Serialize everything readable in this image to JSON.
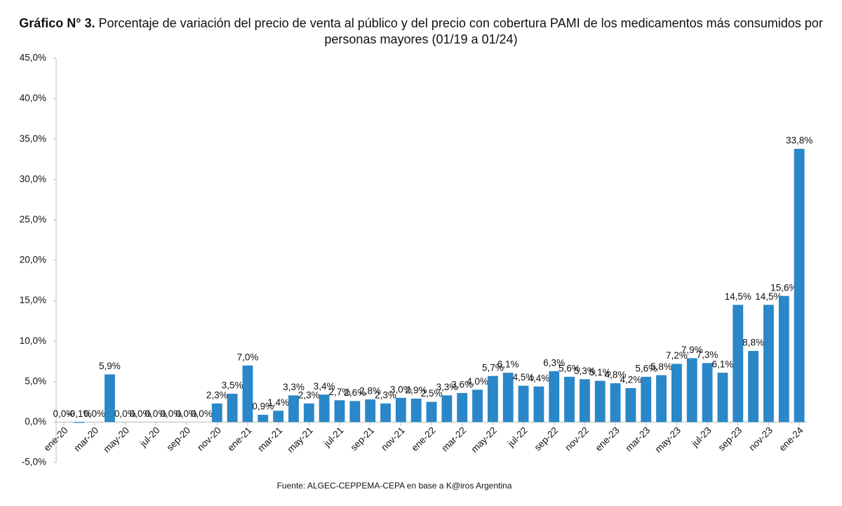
{
  "chart_data": {
    "type": "bar",
    "title_label": "Gráfico N° 3.",
    "title": "Porcentaje de variación del precio de venta al público y del precio con cobertura PAMI de los medicamentos más consumidos por personas mayores (01/19 a 01/24)",
    "source": "Fuente: ALGEC-CEPPEMA-CEPA en base a K@iros Argentina",
    "color": "#2a87c8",
    "categories": [
      "ene-20",
      null,
      "mar-20",
      null,
      "may-20",
      null,
      "jul-20",
      null,
      "sep-20",
      null,
      "nov-20",
      null,
      "ene-21",
      null,
      "mar-21",
      null,
      "may-21",
      null,
      "jul-21",
      null,
      "sep-21",
      null,
      "nov-21",
      null,
      "ene-22",
      null,
      "mar-22",
      null,
      "may-22",
      null,
      "jul-22",
      null,
      "sep-22",
      null,
      "nov-22",
      null,
      "ene-23",
      null,
      "mar-23",
      null,
      "may-23",
      null,
      "jul-23",
      null,
      "sep-23",
      null,
      "nov-23",
      null,
      "ene-24"
    ],
    "values": [
      0,
      -0.1,
      0,
      5.9,
      0,
      0,
      0,
      0,
      0,
      0,
      2.3,
      3.5,
      7.0,
      0.9,
      1.4,
      3.3,
      2.3,
      3.4,
      2.7,
      2.6,
      2.8,
      2.3,
      3.0,
      2.9,
      2.5,
      3.3,
      3.6,
      4.0,
      5.7,
      6.1,
      4.5,
      4.4,
      6.3,
      5.6,
      5.3,
      5.1,
      4.8,
      4.2,
      5.6,
      5.8,
      7.2,
      7.9,
      7.3,
      6.1,
      14.5,
      8.8,
      14.5,
      15.6,
      33.8
    ],
    "value_labels": [
      "0,0%",
      "-0,1%",
      "0,0%",
      "5,9%",
      "0,0%",
      "0,0%",
      "0,0%",
      "0,0%",
      "0,0%",
      "0,0%",
      "2,3%",
      "3,5%",
      "7,0%",
      "0,9%",
      "1,4%",
      "3,3%",
      "2,3%",
      "3,4%",
      "2,7%",
      "2,6%",
      "2,8%",
      "2,3%",
      "3,0%",
      "2,9%",
      "2,5%",
      "3,3%",
      "3,6%",
      "4,0%",
      "5,7%",
      "6,1%",
      "4,5%",
      "4,4%",
      "6,3%",
      "5,6%",
      "5,3%",
      "5,1%",
      "4,8%",
      "4,2%",
      "5,6%",
      "5,8%",
      "7,2%",
      "7,9%",
      "7,3%",
      "6,1%",
      "14,5%",
      "8,8%",
      "14,5%",
      "15,6%",
      "33,8%"
    ],
    "ylim": [
      -5,
      45
    ],
    "yticks": [
      {
        "value": -5,
        "label": "-5,0%"
      },
      {
        "value": 0,
        "label": "0,0%"
      },
      {
        "value": 5,
        "label": "5,0%"
      },
      {
        "value": 10,
        "label": "10,0%"
      },
      {
        "value": 15,
        "label": "15,0%"
      },
      {
        "value": 20,
        "label": "20,0%"
      },
      {
        "value": 25,
        "label": "25,0%"
      },
      {
        "value": 30,
        "label": "30,0%"
      },
      {
        "value": 35,
        "label": "35,0%"
      },
      {
        "value": 40,
        "label": "40,0%"
      },
      {
        "value": 45,
        "label": "45,0%"
      }
    ],
    "grid": false
  }
}
